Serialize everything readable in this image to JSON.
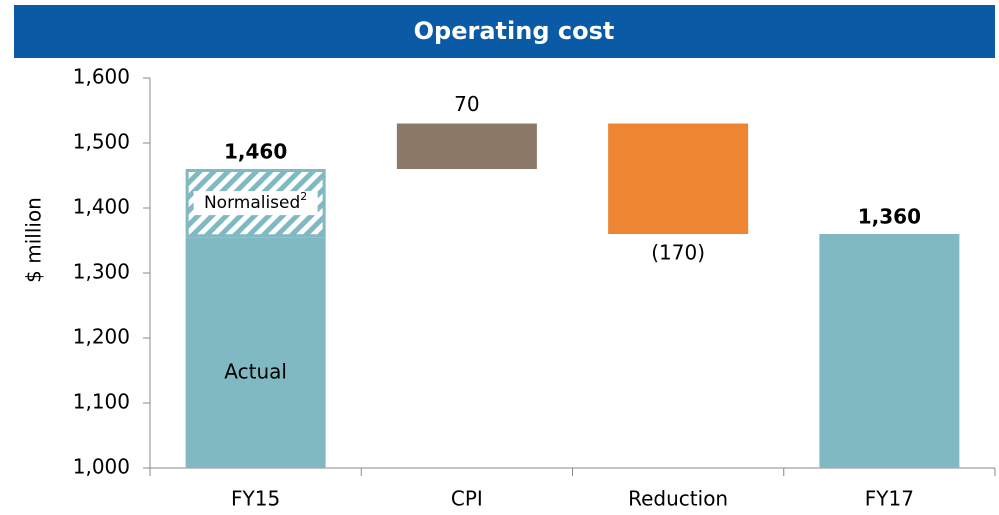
{
  "chart_data": {
    "type": "waterfall",
    "title": "Operating cost",
    "y_label": "$ million",
    "categories": [
      "FY15",
      "CPI",
      "Reduction",
      "FY17"
    ],
    "values": [
      1460,
      70,
      -170,
      1360
    ],
    "value_labels": [
      "1,460",
      "70",
      "(170)",
      "1,360"
    ],
    "kinds": [
      "total",
      "delta",
      "delta",
      "total"
    ],
    "colors": [
      "#80b9c2",
      "#8b7866",
      "#ed8533",
      "#80b9c2"
    ],
    "breakdown": {
      "index": 0,
      "segments": [
        {
          "name": "Actual",
          "value": 1355
        },
        {
          "name": "Normalised",
          "superscript": "2",
          "value": 105
        }
      ]
    },
    "ylim": [
      1000,
      1600
    ],
    "yticks": [
      {
        "value": 1000,
        "label": "1,000"
      },
      {
        "value": 1100,
        "label": "1,100"
      },
      {
        "value": 1200,
        "label": "1,200"
      },
      {
        "value": 1300,
        "label": "1,300"
      },
      {
        "value": 1400,
        "label": "1,400"
      },
      {
        "value": 1500,
        "label": "1,500"
      },
      {
        "value": 1600,
        "label": "1,600"
      }
    ],
    "grid": false
  }
}
